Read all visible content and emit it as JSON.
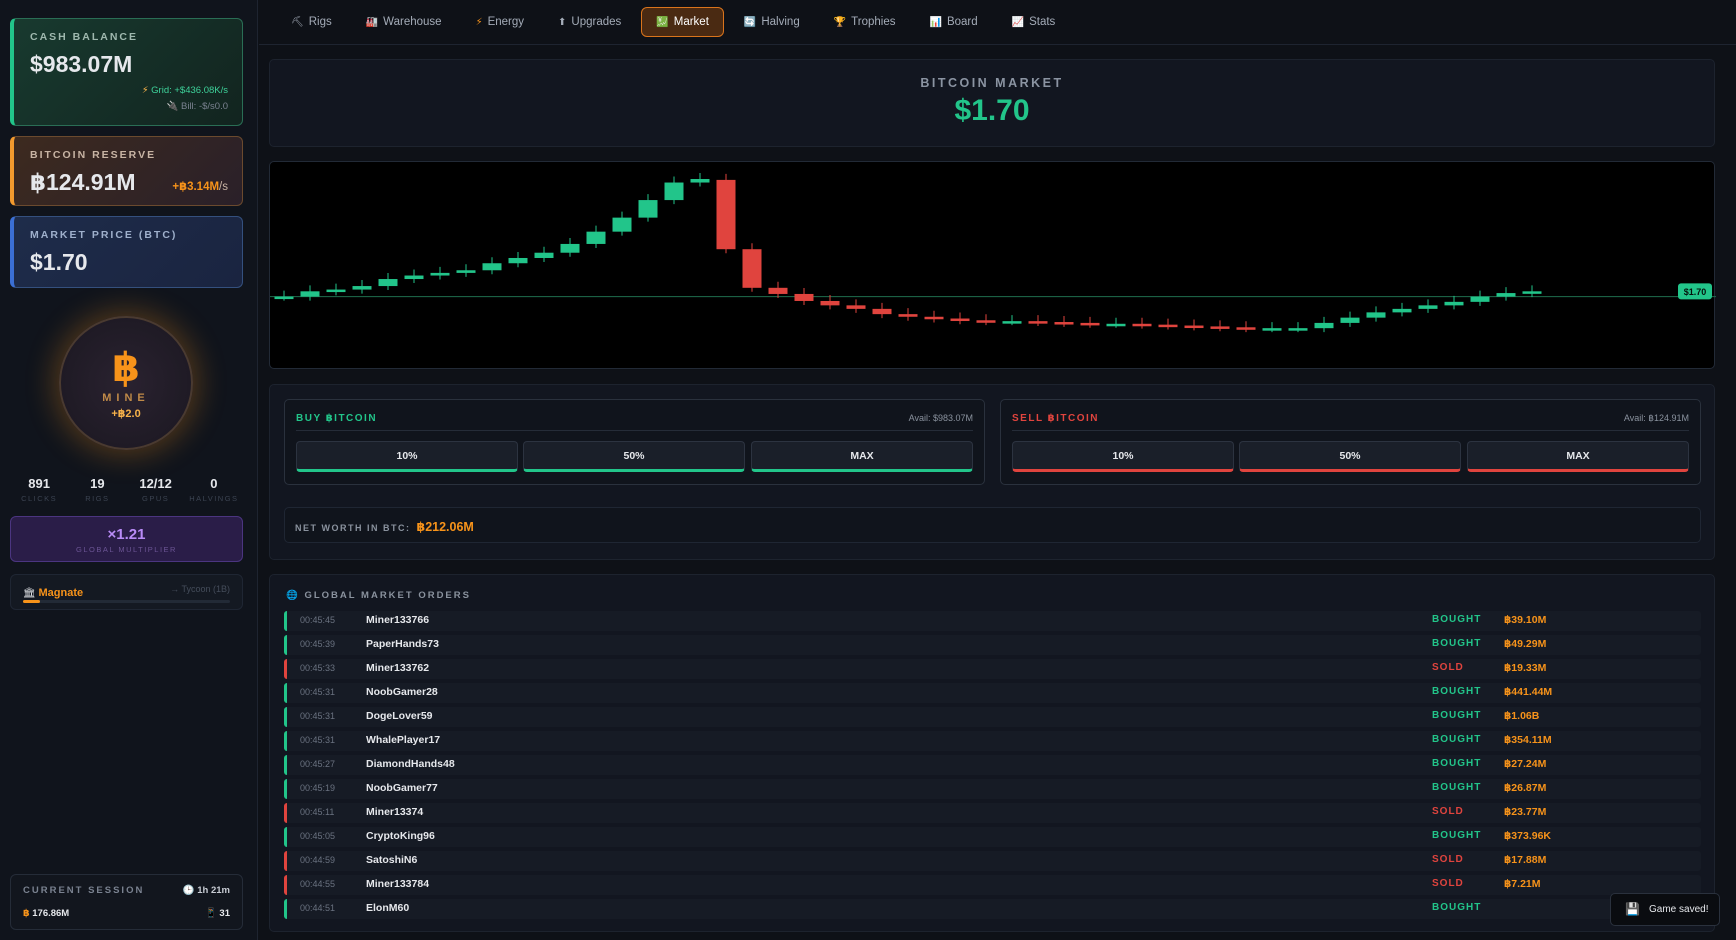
{
  "sidebar": {
    "cash": {
      "label": "CASH BALANCE",
      "value": "$983.07M",
      "grid": "Grid: +$436.08K/s",
      "bill": "Bill: -$/s0.0"
    },
    "reserve": {
      "label": "BITCOIN RESERVE",
      "value": "฿124.91M",
      "rate": "+฿3.14M",
      "rate_unit": "/s"
    },
    "price": {
      "label": "MARKET PRICE (BTC)",
      "value": "$1.70"
    },
    "mine": {
      "icon": "฿",
      "label": "MINE",
      "rate": "+฿2.0"
    },
    "stats": [
      {
        "value": "891",
        "label": "CLICKS"
      },
      {
        "value": "19",
        "label": "RIGS"
      },
      {
        "value": "12/12",
        "label": "GPUS"
      },
      {
        "value": "0",
        "label": "HALVINGS"
      }
    ],
    "multiplier": {
      "value": "×1.21",
      "label": "GLOBAL MULTIPLIER"
    },
    "rank": {
      "name": "Magnate",
      "next": "→ Tycoon (1B)",
      "progress": 0.08
    },
    "session": {
      "label": "CURRENT SESSION",
      "time": "1h 21m",
      "btc": "176.86M",
      "count": "31"
    }
  },
  "nav": {
    "tabs": [
      {
        "label": "Rigs",
        "icon": "pickaxe-icon"
      },
      {
        "label": "Warehouse",
        "icon": "factory-icon"
      },
      {
        "label": "Energy",
        "icon": "lightning-icon"
      },
      {
        "label": "Upgrades",
        "icon": "arrow-up-icon"
      },
      {
        "label": "Market",
        "icon": "chart-icon",
        "active": true
      },
      {
        "label": "Halving",
        "icon": "cycle-icon"
      },
      {
        "label": "Trophies",
        "icon": "trophy-icon"
      },
      {
        "label": "Board",
        "icon": "bar-chart-icon"
      },
      {
        "label": "Stats",
        "icon": "line-chart-icon"
      }
    ]
  },
  "market": {
    "title": "BITCOIN MARKET",
    "price": "$1.70",
    "price_tag": "$1.70"
  },
  "trade": {
    "buy": {
      "title": "BUY ฿ITCOIN",
      "avail": "Avail: $983.07M",
      "buttons": [
        "10%",
        "50%",
        "MAX"
      ]
    },
    "sell": {
      "title": "SELL ฿ITCOIN",
      "avail": "Avail: ฿124.91M",
      "buttons": [
        "10%",
        "50%",
        "MAX"
      ]
    },
    "net_label": "NET WORTH IN BTC:",
    "net_value": "฿212.06M"
  },
  "orders": {
    "title": "GLOBAL MARKET ORDERS",
    "rows": [
      {
        "time": "00:45:45",
        "name": "Miner133766",
        "action": "BOUGHT",
        "amount": "฿39.10M"
      },
      {
        "time": "00:45:39",
        "name": "PaperHands73",
        "action": "BOUGHT",
        "amount": "฿49.29M"
      },
      {
        "time": "00:45:33",
        "name": "Miner133762",
        "action": "SOLD",
        "amount": "฿19.33M"
      },
      {
        "time": "00:45:31",
        "name": "NoobGamer28",
        "action": "BOUGHT",
        "amount": "฿441.44M"
      },
      {
        "time": "00:45:31",
        "name": "DogeLover59",
        "action": "BOUGHT",
        "amount": "฿1.06B"
      },
      {
        "time": "00:45:31",
        "name": "WhalePlayer17",
        "action": "BOUGHT",
        "amount": "฿354.11M"
      },
      {
        "time": "00:45:27",
        "name": "DiamondHands48",
        "action": "BOUGHT",
        "amount": "฿27.24M"
      },
      {
        "time": "00:45:19",
        "name": "NoobGamer77",
        "action": "BOUGHT",
        "amount": "฿26.87M"
      },
      {
        "time": "00:45:11",
        "name": "Miner13374",
        "action": "SOLD",
        "amount": "฿23.77M"
      },
      {
        "time": "00:45:05",
        "name": "CryptoKing96",
        "action": "BOUGHT",
        "amount": "฿373.96K"
      },
      {
        "time": "00:44:59",
        "name": "SatoshiN6",
        "action": "SOLD",
        "amount": "฿17.88M"
      },
      {
        "time": "00:44:55",
        "name": "Miner133784",
        "action": "SOLD",
        "amount": "฿7.21M"
      },
      {
        "time": "00:44:51",
        "name": "ElonM60",
        "action": "BOUGHT",
        "amount": ""
      }
    ]
  },
  "toast": {
    "text": "Game saved!"
  },
  "candles": [
    [
      1.7,
      1.7
    ],
    [
      1.7,
      1.76
    ],
    [
      1.76,
      1.78
    ],
    [
      1.78,
      1.82
    ],
    [
      1.82,
      1.9
    ],
    [
      1.9,
      1.94
    ],
    [
      1.94,
      1.97
    ],
    [
      1.97,
      2.0
    ],
    [
      2.0,
      2.08
    ],
    [
      2.08,
      2.14
    ],
    [
      2.14,
      2.2
    ],
    [
      2.2,
      2.3
    ],
    [
      2.3,
      2.44
    ],
    [
      2.44,
      2.6
    ],
    [
      2.6,
      2.8
    ],
    [
      2.8,
      3.0
    ],
    [
      3.0,
      3.04
    ],
    [
      3.03,
      2.24
    ],
    [
      2.24,
      1.8
    ],
    [
      1.8,
      1.73
    ],
    [
      1.73,
      1.65
    ],
    [
      1.65,
      1.6
    ],
    [
      1.6,
      1.56
    ],
    [
      1.56,
      1.5
    ],
    [
      1.5,
      1.47
    ],
    [
      1.47,
      1.45
    ],
    [
      1.45,
      1.43
    ],
    [
      1.43,
      1.42
    ],
    [
      1.42,
      1.42
    ],
    [
      1.42,
      1.41
    ],
    [
      1.41,
      1.4
    ],
    [
      1.4,
      1.39
    ],
    [
      1.39,
      1.39
    ],
    [
      1.39,
      1.38
    ],
    [
      1.38,
      1.37
    ],
    [
      1.37,
      1.36
    ],
    [
      1.36,
      1.35
    ],
    [
      1.35,
      1.34
    ],
    [
      1.34,
      1.34
    ],
    [
      1.34,
      1.34
    ],
    [
      1.34,
      1.4
    ],
    [
      1.4,
      1.46
    ],
    [
      1.46,
      1.52
    ],
    [
      1.52,
      1.56
    ],
    [
      1.56,
      1.6
    ],
    [
      1.6,
      1.64
    ],
    [
      1.64,
      1.7
    ],
    [
      1.7,
      1.74
    ],
    [
      1.74,
      1.76
    ]
  ],
  "colors": {
    "up": "#22c58a",
    "down": "#e0443e",
    "bitcoin": "#f7931a"
  }
}
